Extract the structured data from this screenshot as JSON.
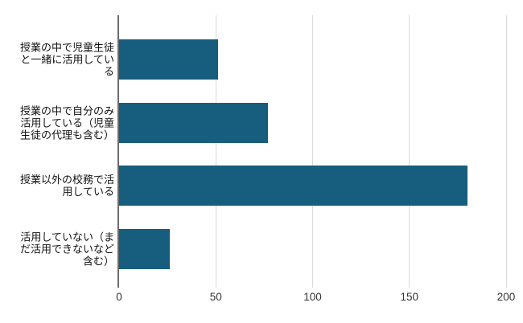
{
  "chart_data": {
    "type": "bar",
    "orientation": "horizontal",
    "title": "",
    "xlabel": "",
    "ylabel": "",
    "categories": [
      "授業の中で児童生徒と一緒に活用している",
      "授業の中で自分のみ活用している（児童生徒の代理も含む）",
      "授業以外の校務で活用している",
      "活用していない（まだ活用できないなど含む）"
    ],
    "categories_wrapped": [
      "授業の中で児童生徒\nと一緒に活用してい\nる",
      "授業の中で自分のみ\n活用している（児童\n生徒の代理も含む）",
      "授業以外の校務で活\n用している",
      "活用していない（ま\nだ活用できないなど\n含む）"
    ],
    "values": [
      51,
      77,
      180,
      26
    ],
    "xlim": [
      0,
      200
    ],
    "xticks": [
      0,
      50,
      100,
      150,
      200
    ],
    "grid": true,
    "legend": false,
    "colors": {
      "bar": "#175d7e",
      "axis_line": "#6b6b6b",
      "gridline": "#d9d9d9",
      "tick_label": "#333333",
      "category_label": "#111111",
      "background": "#ffffff"
    }
  }
}
